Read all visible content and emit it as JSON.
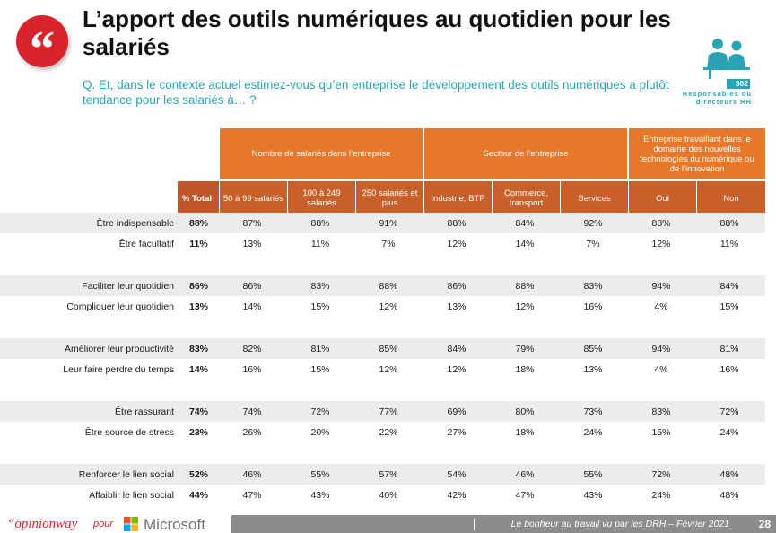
{
  "title": "L’apport des outils numériques au quotidien pour les salariés",
  "question": "Q. Et, dans le contexte actuel estimez-vous qu’en entreprise le développement des outils numériques a plutôt tendance pour les salariés à… ?",
  "quote_mark": "“",
  "sample": {
    "count": "302",
    "label": "Responsables ou directeurs RH"
  },
  "group_headers": [
    "Nombre de salariés dans l’entreprise",
    "Secteur de l’entreprise",
    "Entreprise travaillant dans le domaine des nouvelles technologies du numérique ou de l’innovation"
  ],
  "columns": [
    "% Total",
    "50 à 99 salariés",
    "100 à 249 salariés",
    "250 salariés et plus",
    "Industrie, BTP",
    "Commerce, transport",
    "Services",
    "Oui",
    "Non"
  ],
  "rows": [
    {
      "label": "Être indispensable",
      "total": "88%",
      "values": [
        "87%",
        "88%",
        "91%",
        "88%",
        "84%",
        "92%",
        "88%",
        "88%"
      ]
    },
    {
      "label": "Être facultatif",
      "total": "11%",
      "values": [
        "13%",
        "11%",
        "7%",
        "12%",
        "14%",
        "7%",
        "12%",
        "11%"
      ]
    },
    {
      "label": "Faciliter leur quotidien",
      "total": "86%",
      "values": [
        "86%",
        "83%",
        "88%",
        "86%",
        "88%",
        "83%",
        "94%",
        "84%"
      ]
    },
    {
      "label": "Compliquer leur quotidien",
      "total": "13%",
      "values": [
        "14%",
        "15%",
        "12%",
        "13%",
        "12%",
        "16%",
        "4%",
        "15%"
      ]
    },
    {
      "label": "Améliorer leur productivité",
      "total": "83%",
      "values": [
        "82%",
        "81%",
        "85%",
        "84%",
        "79%",
        "85%",
        "94%",
        "81%"
      ]
    },
    {
      "label": "Leur faire perdre du temps",
      "total": "14%",
      "values": [
        "16%",
        "15%",
        "12%",
        "12%",
        "18%",
        "13%",
        "4%",
        "16%"
      ]
    },
    {
      "label": "Être rassurant",
      "total": "74%",
      "values": [
        "74%",
        "72%",
        "77%",
        "69%",
        "80%",
        "73%",
        "83%",
        "72%"
      ]
    },
    {
      "label": "Être source de stress",
      "total": "23%",
      "values": [
        "26%",
        "20%",
        "22%",
        "27%",
        "18%",
        "24%",
        "15%",
        "24%"
      ]
    },
    {
      "label": "Renforcer le lien social",
      "total": "52%",
      "values": [
        "46%",
        "55%",
        "57%",
        "54%",
        "46%",
        "55%",
        "72%",
        "48%"
      ]
    },
    {
      "label": "Affaiblir le lien social",
      "total": "44%",
      "values": [
        "47%",
        "43%",
        "40%",
        "42%",
        "47%",
        "43%",
        "24%",
        "48%"
      ]
    }
  ],
  "footer": {
    "brand": "“opinionway",
    "pour": "pour",
    "partner": "Microsoft",
    "study": "Le bonheur au travail vu par les DRH – Février 2021",
    "page": "28"
  },
  "colors": {
    "accent": "#e5782b",
    "accent_dark": "#c8602a",
    "teal": "#2aa3b3",
    "red": "#d8232a"
  }
}
